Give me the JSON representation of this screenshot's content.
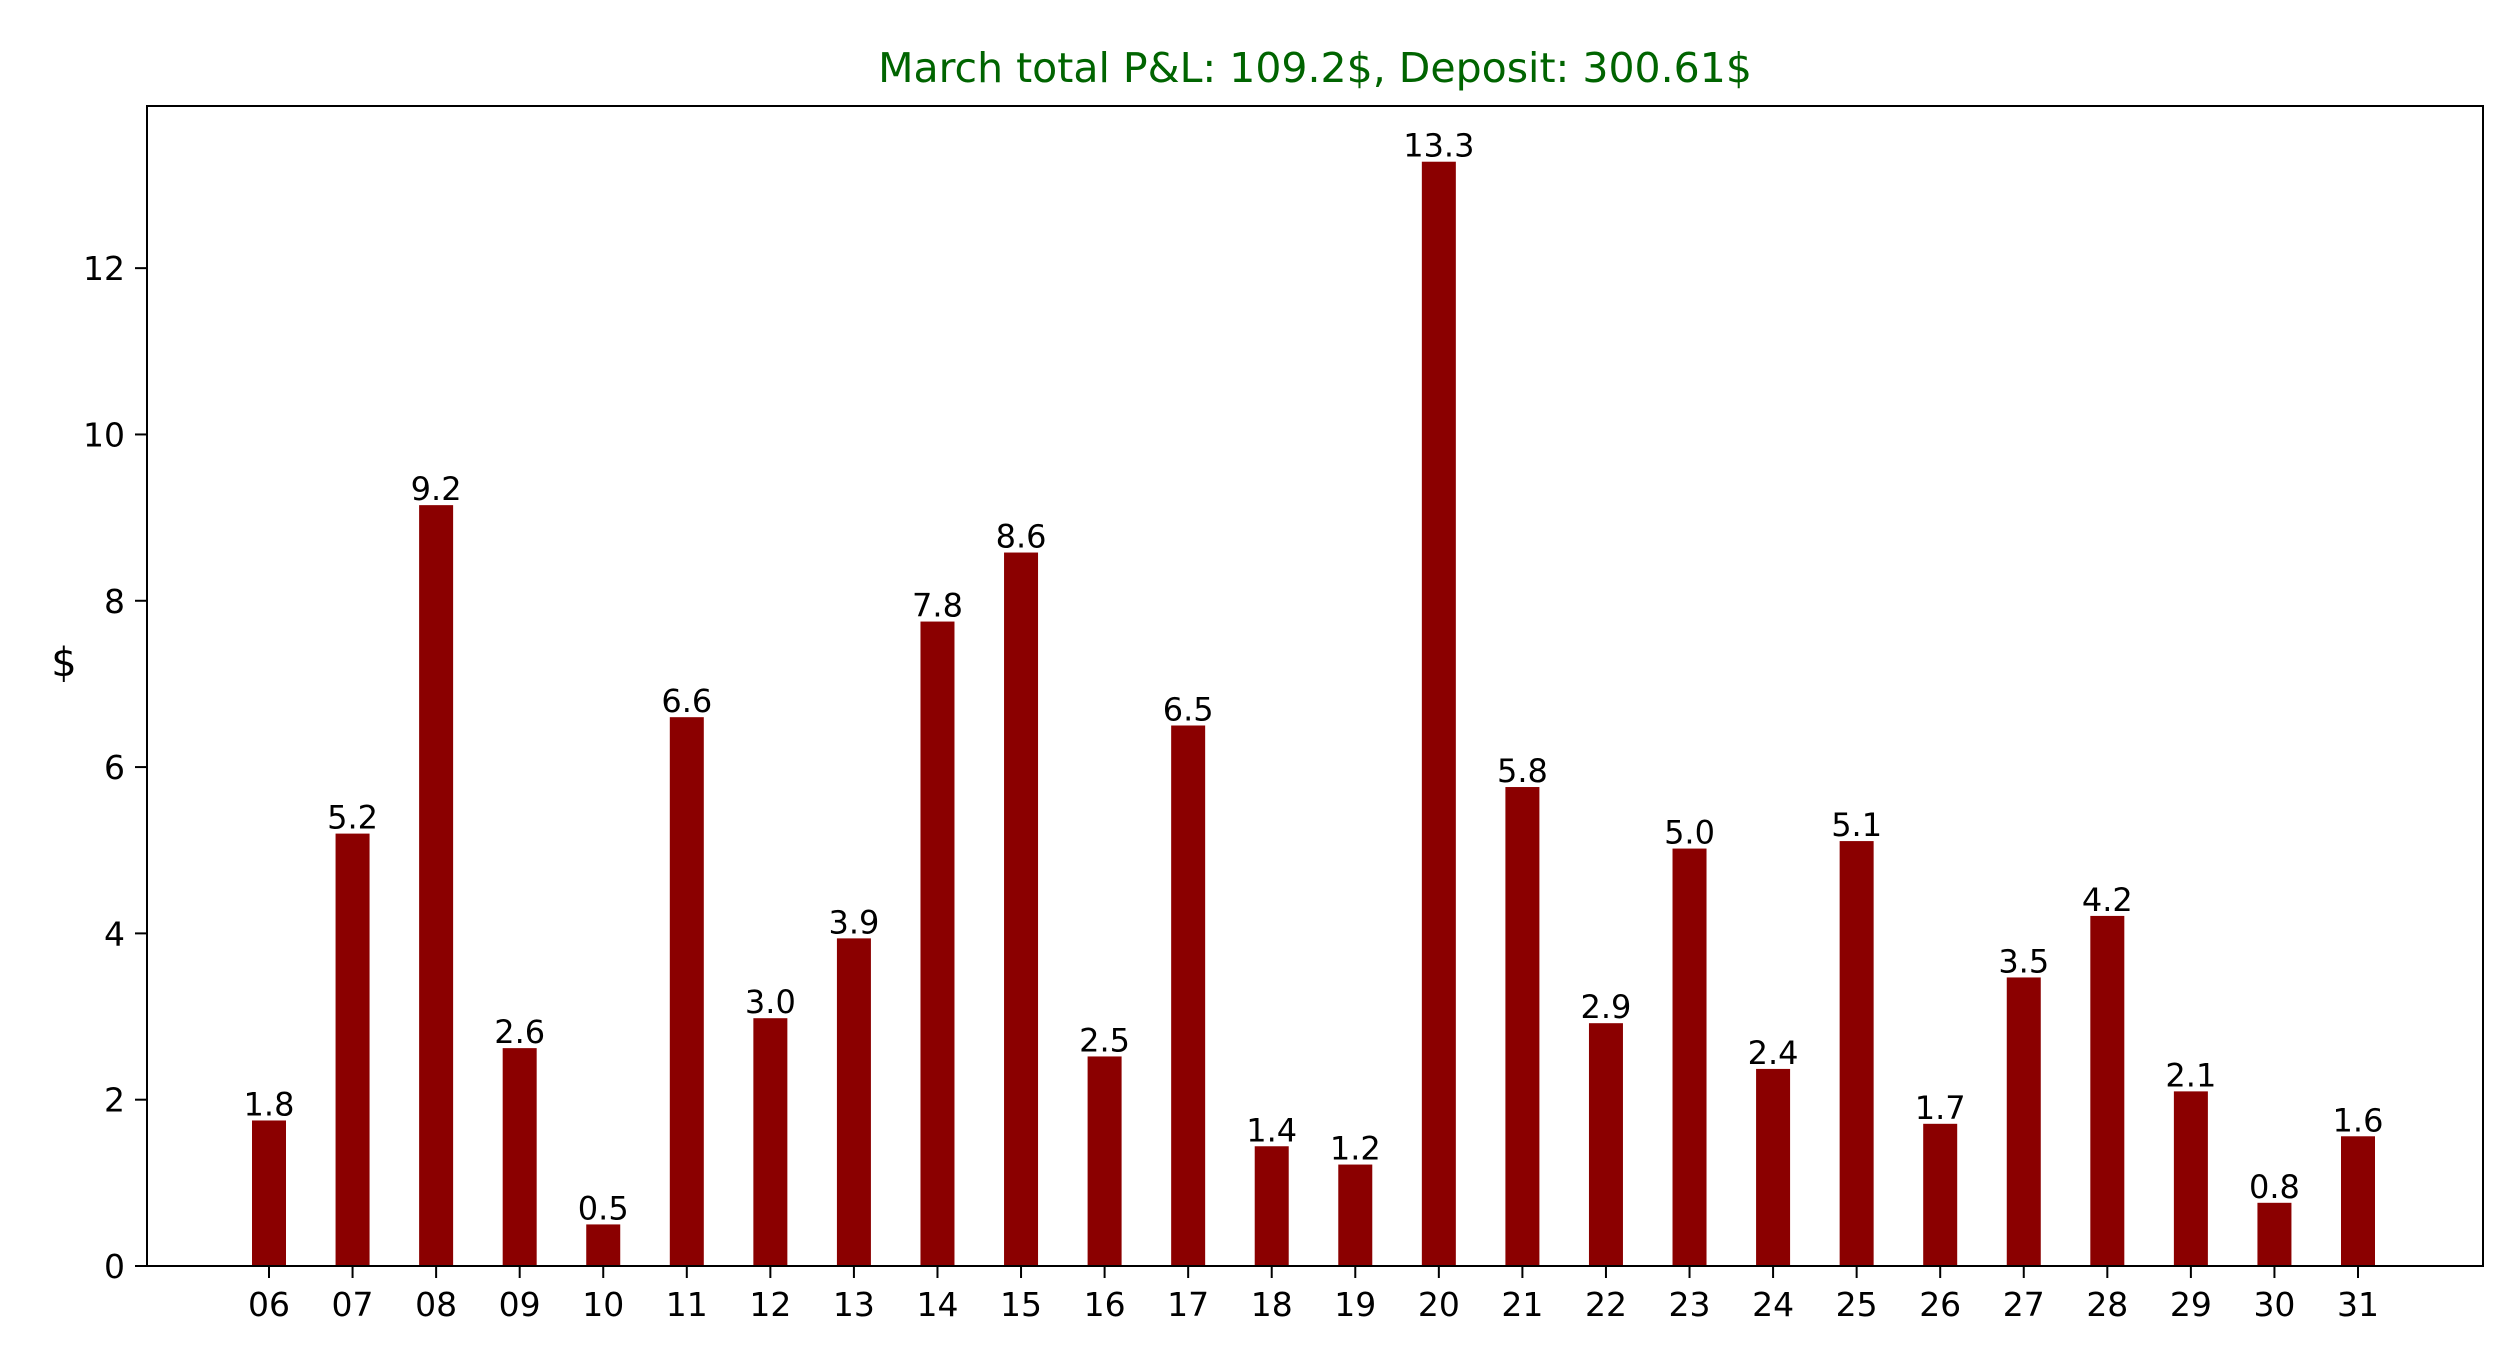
{
  "chart_data": {
    "type": "bar",
    "title": "March total P&L: 109.2$, Deposit: 300.61$",
    "title_color": "#006400",
    "bar_color": "#8b0000",
    "xlabel": "",
    "ylabel": "$",
    "ylim": [
      0,
      13.95
    ],
    "yticks": [
      0,
      2,
      4,
      6,
      8,
      10,
      12
    ],
    "grid": false,
    "categories": [
      "06",
      "07",
      "08",
      "09",
      "10",
      "11",
      "12",
      "13",
      "14",
      "15",
      "16",
      "17",
      "18",
      "19",
      "20",
      "21",
      "22",
      "23",
      "24",
      "25",
      "26",
      "27",
      "28",
      "29",
      "30",
      "31"
    ],
    "values": [
      1.75,
      5.2,
      9.15,
      2.62,
      0.5,
      6.6,
      2.98,
      3.94,
      7.75,
      8.58,
      2.52,
      6.5,
      1.44,
      1.22,
      13.28,
      5.76,
      2.92,
      5.02,
      2.37,
      5.11,
      1.71,
      3.47,
      4.21,
      2.1,
      0.76,
      1.56
    ],
    "labels": [
      "1.8",
      "5.2",
      "9.2",
      "2.6",
      "0.5",
      "6.6",
      "3.0",
      "3.9",
      "7.8",
      "8.6",
      "2.5",
      "6.5",
      "1.4",
      "1.2",
      "13.3",
      "5.8",
      "2.9",
      "5.0",
      "2.4",
      "5.1",
      "1.7",
      "3.5",
      "4.2",
      "2.1",
      "0.8",
      "1.6"
    ]
  }
}
